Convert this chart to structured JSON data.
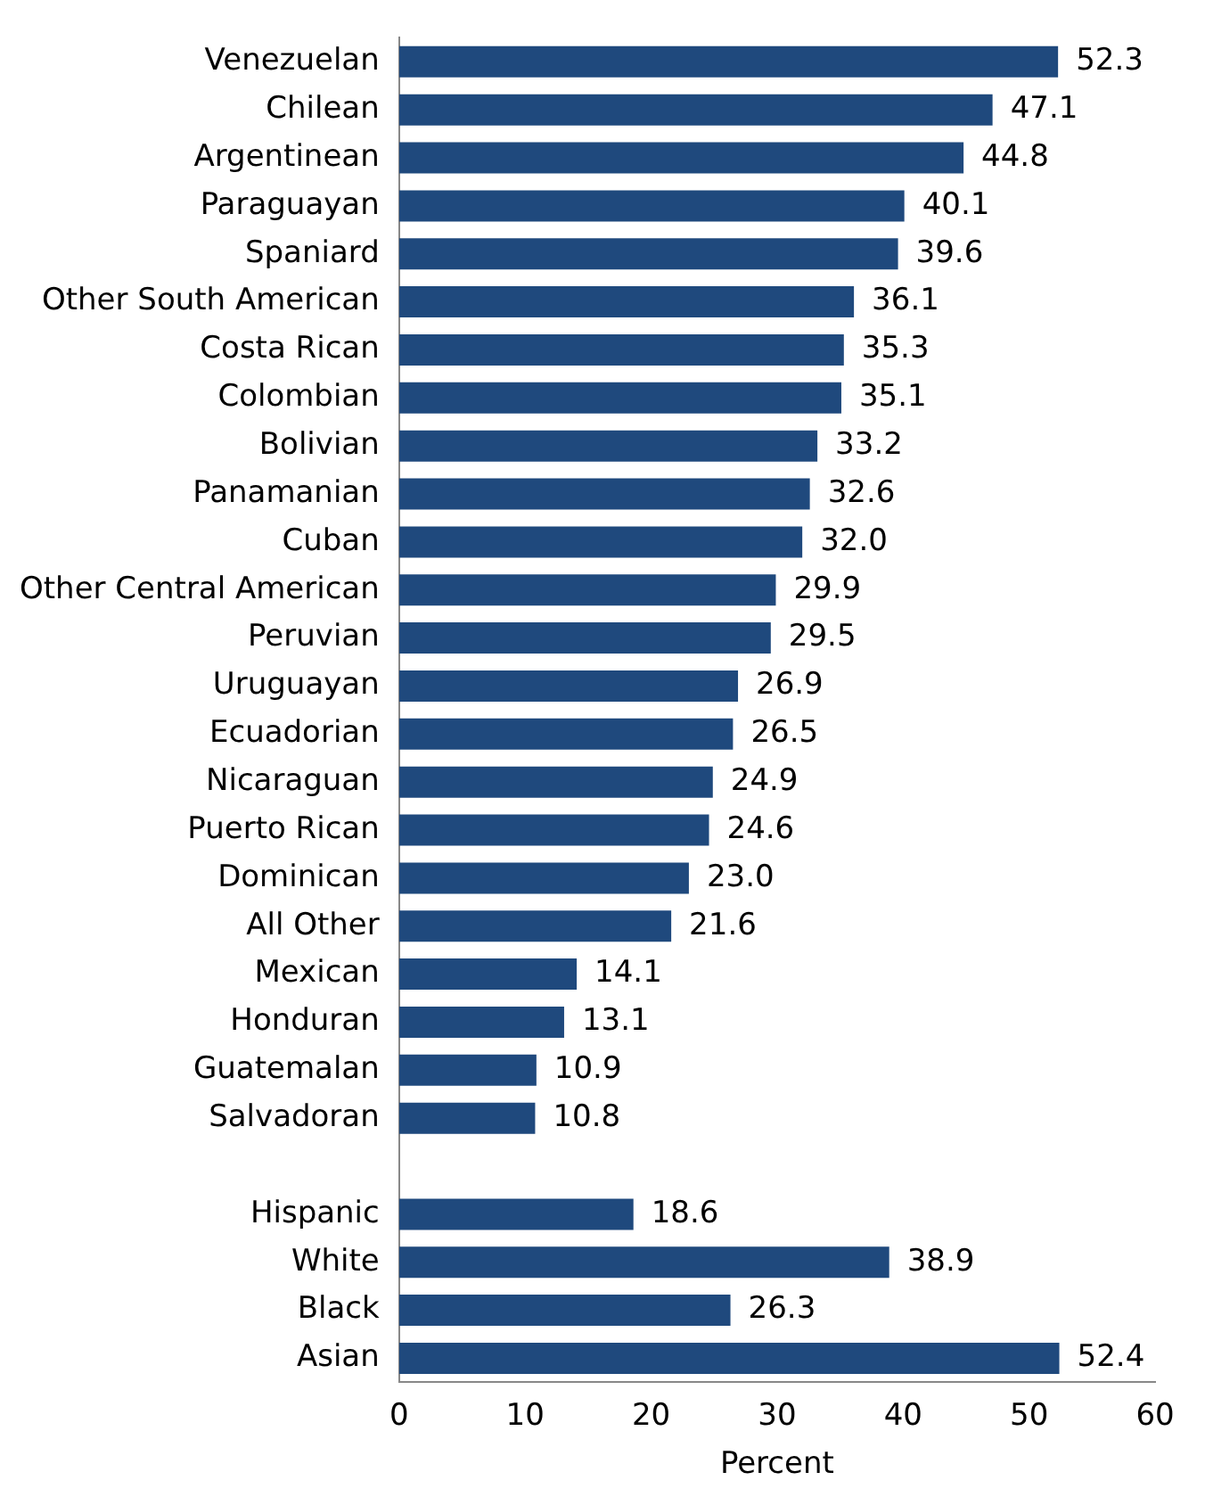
{
  "chart_data": {
    "type": "bar",
    "orientation": "horizontal",
    "xlabel": "Percent",
    "categories": [
      "Venezuelan",
      "Chilean",
      "Argentinean",
      "Paraguayan",
      "Spaniard",
      "Other South American",
      "Costa Rican",
      "Colombian",
      "Bolivian",
      "Panamanian",
      "Cuban",
      "Other Central American",
      "Peruvian",
      "Uruguayan",
      "Ecuadorian",
      "Nicaraguan",
      "Puerto Rican",
      "Dominican",
      "All Other",
      "Mexican",
      "Honduran",
      "Guatemalan",
      "Salvadoran",
      null,
      "Hispanic",
      "White",
      "Black",
      "Asian"
    ],
    "values": [
      52.3,
      47.1,
      44.8,
      40.1,
      39.6,
      36.1,
      35.3,
      35.1,
      33.2,
      32.6,
      32.0,
      29.9,
      29.5,
      26.9,
      26.5,
      24.9,
      24.6,
      23.0,
      21.6,
      14.1,
      13.1,
      10.9,
      10.8,
      null,
      18.6,
      38.9,
      26.3,
      52.4
    ],
    "value_labels": [
      "52.3",
      "47.1",
      "44.8",
      "40.1",
      "39.6",
      "36.1",
      "35.3",
      "35.1",
      "33.2",
      "32.6",
      "32.0",
      "29.9",
      "29.5",
      "26.9",
      "26.5",
      "24.9",
      "24.6",
      "23.0",
      "21.6",
      "14.1",
      "13.1",
      "10.9",
      "10.8",
      null,
      "18.6",
      "38.9",
      "26.3",
      "52.4"
    ],
    "color": "#1f497d",
    "xlim": [
      0,
      60
    ],
    "xticks": [
      0,
      10,
      20,
      30,
      40,
      50,
      60
    ]
  }
}
